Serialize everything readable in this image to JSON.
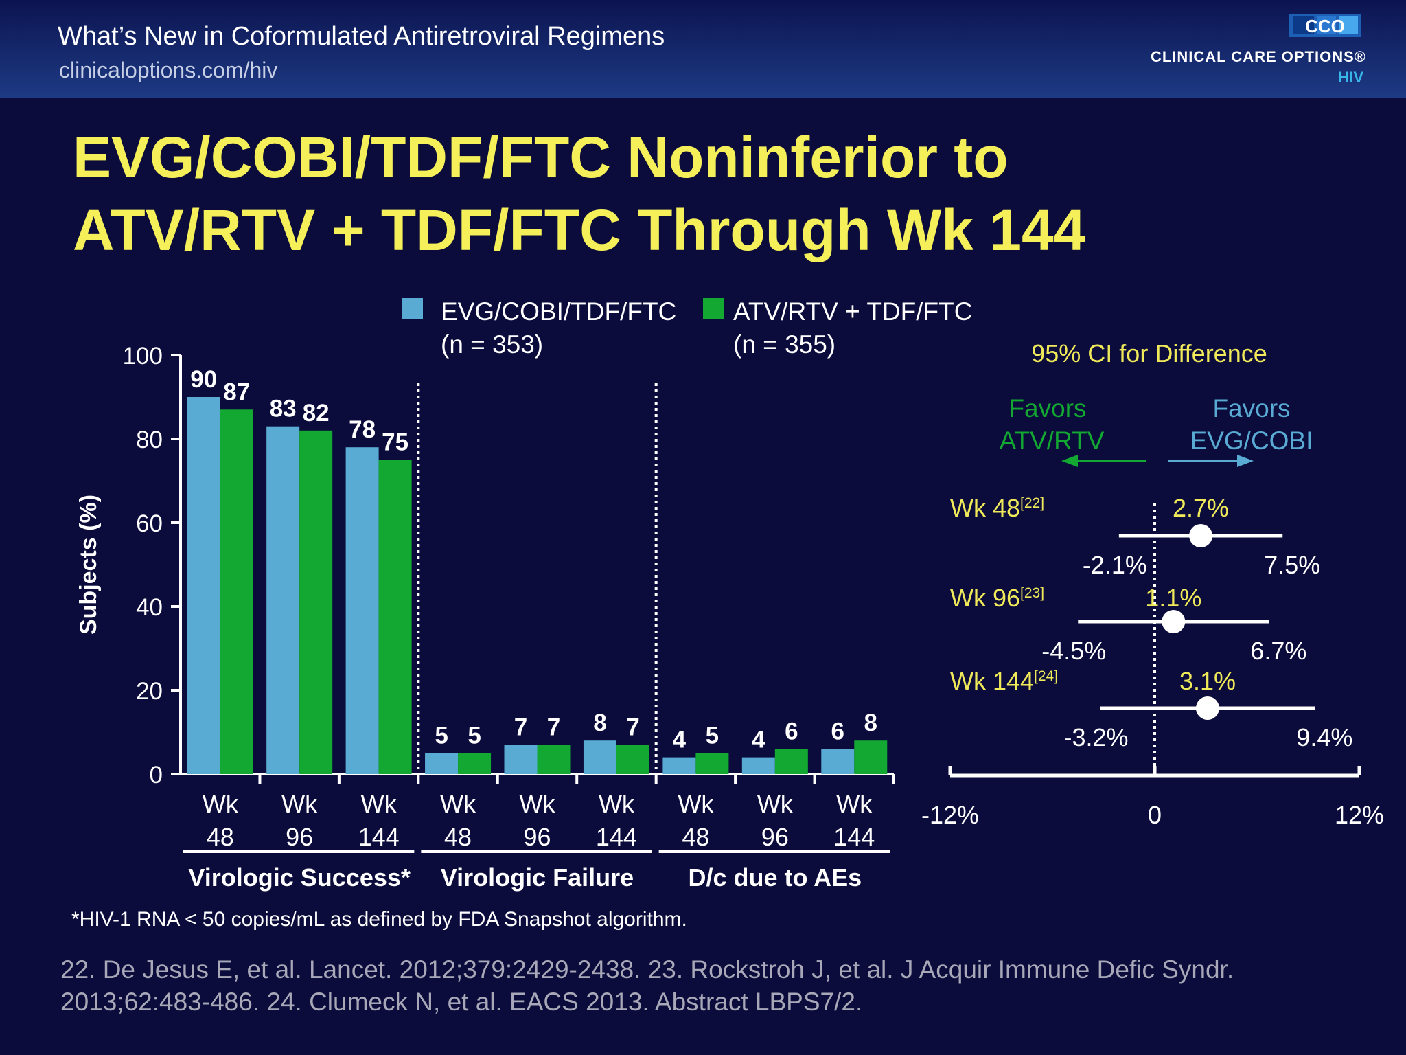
{
  "header": {
    "title": "What’s New in Coformulated Antiretroviral Regimens",
    "url": "clinicaloptions.com/hiv",
    "brand_name": "CLINICAL CARE OPTIONS®",
    "brand_sub": "HIV",
    "logo_text": "CCO"
  },
  "slide_title_line1": "EVG/COBI/TDF/FTC Noninferior to",
  "slide_title_line2": "ATV/RTV + TDF/FTC Through Wk 144",
  "colors": {
    "evg": "#5aabd4",
    "atv": "#12a832",
    "title": "#f5f05a",
    "forest_label": "#f0ea5a",
    "axis": "#ffffff"
  },
  "chart_data": [
    {
      "type": "bar",
      "ylabel": "Subjects (%)",
      "ylim": [
        0,
        100
      ],
      "yticks": [
        0,
        20,
        40,
        60,
        80,
        100
      ],
      "legend": [
        {
          "name": "EVG/COBI/TDF/FTC",
          "n": "(n = 353)"
        },
        {
          "name": "ATV/RTV + TDF/FTC",
          "n": "(n = 355)"
        }
      ],
      "groups": [
        {
          "name": "Virologic Success*",
          "categories": [
            {
              "top": "Wk",
              "bottom": "48"
            },
            {
              "top": "Wk",
              "bottom": "96"
            },
            {
              "top": "Wk",
              "bottom": "144"
            }
          ],
          "evg": [
            90,
            83,
            78
          ],
          "atv": [
            87,
            82,
            75
          ]
        },
        {
          "name": "Virologic Failure",
          "categories": [
            {
              "top": "Wk",
              "bottom": "48"
            },
            {
              "top": "Wk",
              "bottom": "96"
            },
            {
              "top": "Wk",
              "bottom": "144"
            }
          ],
          "evg": [
            5,
            7,
            8
          ],
          "atv": [
            5,
            7,
            7
          ]
        },
        {
          "name": "D/c due to AEs",
          "categories": [
            {
              "top": "Wk",
              "bottom": "48"
            },
            {
              "top": "Wk",
              "bottom": "96"
            },
            {
              "top": "Wk",
              "bottom": "144"
            }
          ],
          "evg": [
            4,
            4,
            6
          ],
          "atv": [
            5,
            6,
            8
          ]
        }
      ]
    },
    {
      "type": "forest",
      "title": "95% CI for Difference",
      "favors_left": [
        "Favors",
        "ATV/RTV"
      ],
      "favors_right": [
        "Favors",
        "EVG/COBI"
      ],
      "xlim": [
        -12,
        12
      ],
      "xtick_labels": [
        "-12%",
        "0",
        "12%"
      ],
      "rows": [
        {
          "label": "Wk 48",
          "ref": "[22]",
          "estimate": 2.7,
          "lower": -2.1,
          "upper": 7.5,
          "estimate_label": "2.7%",
          "lower_label": "-2.1%",
          "upper_label": "7.5%"
        },
        {
          "label": "Wk 96",
          "ref": "[23]",
          "estimate": 1.1,
          "lower": -4.5,
          "upper": 6.7,
          "estimate_label": "1.1%",
          "lower_label": "-4.5%",
          "upper_label": "6.7%"
        },
        {
          "label": "Wk 144",
          "ref": "[24]",
          "estimate": 3.1,
          "lower": -3.2,
          "upper": 9.4,
          "estimate_label": "3.1%",
          "lower_label": "-3.2%",
          "upper_label": "9.4%"
        }
      ]
    }
  ],
  "footnote": "*HIV-1 RNA < 50 copies/mL as defined by FDA Snapshot algorithm.",
  "references_line1": "22. De Jesus E, et al. Lancet. 2012;379:2429-2438. 23. Rockstroh J, et al. J Acquir Immune Defic Syndr.",
  "references_line2": "2013;62:483-486. 24. Clumeck N, et al. EACS 2013. Abstract LBPS7/2."
}
